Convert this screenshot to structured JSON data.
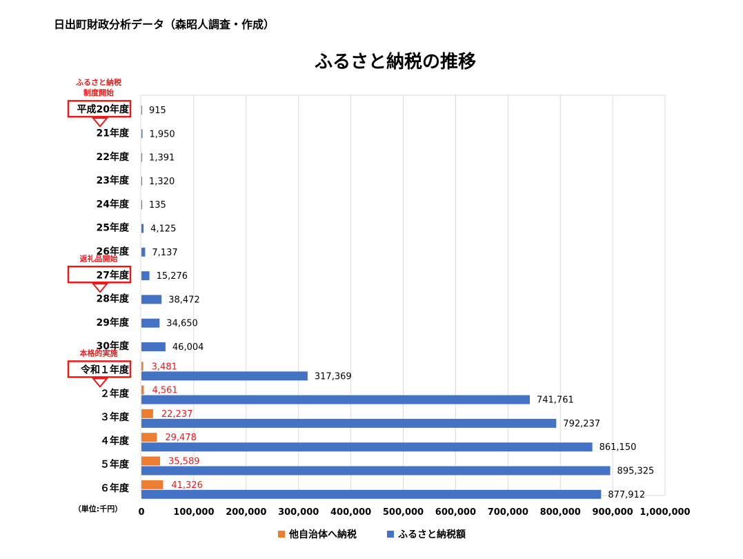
{
  "page": {
    "title": "日出町財政分析データ（森昭人調査・作成）"
  },
  "chart_data": {
    "type": "bar",
    "orientation": "horizontal",
    "title": "ふるさと納税の推移",
    "unit_label": "（単位:千円）",
    "xlim": [
      0,
      1000000
    ],
    "x_ticks": [
      0,
      100000,
      200000,
      300000,
      400000,
      500000,
      600000,
      700000,
      800000,
      900000,
      1000000
    ],
    "x_tick_labels": [
      "0",
      "100,000",
      "200,000",
      "300,000",
      "400,000",
      "500,000",
      "600,000",
      "700,000",
      "800,000",
      "900,000",
      "1,000,000"
    ],
    "categories": [
      "平成20年度",
      "21年度",
      "22年度",
      "23年度",
      "24年度",
      "25年度",
      "26年度",
      "27年度",
      "28年度",
      "29年度",
      "30年度",
      "令和１年度",
      "２年度",
      "３年度",
      "４年度",
      "５年度",
      "６年度"
    ],
    "series": [
      {
        "name": "他自治体へ納税",
        "color": "#ed7d31",
        "label_color": "#e8191b",
        "values": [
          null,
          null,
          null,
          null,
          null,
          null,
          null,
          null,
          null,
          null,
          null,
          3481,
          4561,
          22237,
          29478,
          35589,
          41326
        ],
        "labels": [
          null,
          null,
          null,
          null,
          null,
          null,
          null,
          null,
          null,
          null,
          null,
          "3,481",
          "4,561",
          "22,237",
          "29,478",
          "35,589",
          "41,326"
        ]
      },
      {
        "name": "ふるさと納税額",
        "color": "#4472c4",
        "label_color": "#000000",
        "values": [
          915,
          1950,
          1391,
          1320,
          135,
          4125,
          7137,
          15276,
          38472,
          34650,
          46004,
          317369,
          741761,
          792237,
          861150,
          895325,
          877912
        ],
        "labels": [
          "915",
          "1,950",
          "1,391",
          "1,320",
          "135",
          "4,125",
          "7,137",
          "15,276",
          "38,472",
          "34,650",
          "46,004",
          "317,369",
          "741,761",
          "792,237",
          "861,150",
          "895,325",
          "877,912"
        ]
      }
    ],
    "legend_position": "bottom",
    "boxed_categories": [
      "平成20年度",
      "27年度",
      "令和１年度"
    ],
    "annotations": [
      {
        "category": "平成20年度",
        "lines": [
          "ふるさと納税",
          "制度開始"
        ]
      },
      {
        "category": "27年度",
        "lines": [
          "返礼品開始"
        ]
      },
      {
        "category": "令和１年度",
        "lines": [
          "本格的実施"
        ]
      }
    ]
  }
}
